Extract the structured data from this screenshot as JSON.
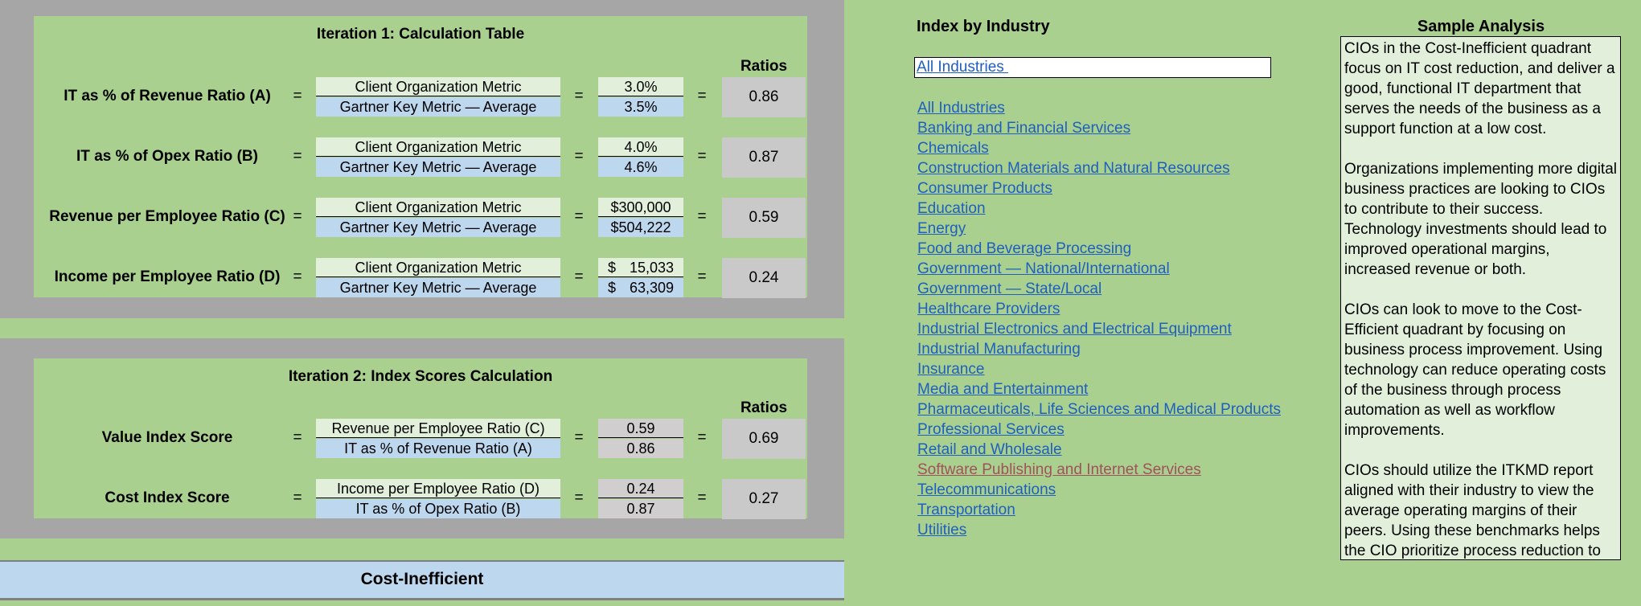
{
  "iteration1": {
    "title": "Iteration 1: Calculation Table",
    "ratios_header": "Ratios",
    "rows": [
      {
        "label": "IT as % of Revenue Ratio (A)",
        "eq1": "=",
        "numerator_label": "Client Organization Metric",
        "denominator_label": "Gartner Key Metric — Average",
        "eq2": "=",
        "numerator_value": "3.0%",
        "denominator_value": "3.5%",
        "eq3": "=",
        "ratio": "0.86"
      },
      {
        "label": "IT as % of Opex Ratio (B)",
        "eq1": "=",
        "numerator_label": "Client Organization Metric",
        "denominator_label": "Gartner Key Metric — Average",
        "eq2": "=",
        "numerator_value": "4.0%",
        "denominator_value": "4.6%",
        "eq3": "=",
        "ratio": "0.87"
      },
      {
        "label": "Revenue per Employee Ratio (C)",
        "eq1": "=",
        "numerator_label": "Client Organization Metric",
        "denominator_label": "Gartner Key Metric — Average",
        "eq2": "=",
        "numerator_value": "$300,000",
        "denominator_value": "$504,222",
        "eq3": "=",
        "ratio": "0.59"
      },
      {
        "label": "Income per Employee Ratio (D)",
        "eq1": "=",
        "numerator_label": "Client Organization Metric",
        "denominator_label": "Gartner Key Metric — Average",
        "eq2": "=",
        "numerator_currency": "$",
        "numerator_amount": "15,033",
        "denominator_currency": "$",
        "denominator_amount": "63,309",
        "eq3": "=",
        "ratio": "0.24"
      }
    ]
  },
  "iteration2": {
    "title": "Iteration 2: Index Scores Calculation",
    "ratios_header": "Ratios",
    "rows": [
      {
        "label": "Value Index Score",
        "eq1": "=",
        "numerator_label": "Revenue per Employee Ratio (C)",
        "denominator_label": "IT as % of Revenue Ratio (A)",
        "eq2": "=",
        "numerator_value": "0.59",
        "denominator_value": "0.86",
        "eq3": "=",
        "ratio": "0.69"
      },
      {
        "label": "Cost Index Score",
        "eq1": "=",
        "numerator_label": "Income per Employee Ratio (D)",
        "denominator_label": "IT as % of Opex Ratio (B)",
        "eq2": "=",
        "numerator_value": "0.24",
        "denominator_value": "0.87",
        "eq3": "=",
        "ratio": "0.27"
      }
    ]
  },
  "quadrant": {
    "label": "Cost-Inefficient"
  },
  "index_by_industry": {
    "header": "Index by Industry",
    "selected": "All Industries ",
    "items": [
      "All Industries",
      "Banking and Financial Services",
      "Chemicals",
      "Construction Materials and Natural Resources",
      "Consumer Products",
      "Education",
      "Energy",
      "Food and Beverage Processing",
      "Government — National/International",
      "Government — State/Local",
      "Healthcare Providers",
      "Industrial Electronics and Electrical Equipment",
      "Industrial Manufacturing",
      "Insurance",
      "Media and Entertainment",
      "Pharmaceuticals, Life Sciences and Medical Products",
      "Professional Services",
      "Retail and Wholesale",
      "Software Publishing and Internet Services",
      "Telecommunications",
      "Transportation",
      "Utilities"
    ],
    "visited_item": "Software Publishing and Internet Services"
  },
  "sample_analysis": {
    "header": "Sample Analysis",
    "paragraphs": [
      "CIOs in the Cost-Inefficient quadrant focus on IT cost reduction, and deliver a good, functional IT department that serves the needs of the business as a support function at a low cost.",
      "Organizations implementing more digital business practices are looking to CIOs to contribute to their success. Technology investments should lead to improved operational margins, increased revenue or both.",
      "CIOs can look to move to the Cost-Efficient quadrant by focusing on business process improvement. Using technology can reduce operating costs of the business through process automation as well as workflow improvements.",
      "CIOs should utilize the ITKMD report aligned with their industry to view the average operating margins of their peers. Using these benchmarks helps the CIO prioritize process reduction to"
    ]
  },
  "colors": {
    "background": "#a9d08e",
    "gray_band": "#a6a6a6",
    "numerator_fill": "#e2efda",
    "denominator_fill": "#bdd7ee",
    "ratio_fill": "#c9c9c9",
    "link": "#1f5fc0",
    "visited_link": "#a0525a",
    "quadrant_fill": "#bdd7ee"
  }
}
